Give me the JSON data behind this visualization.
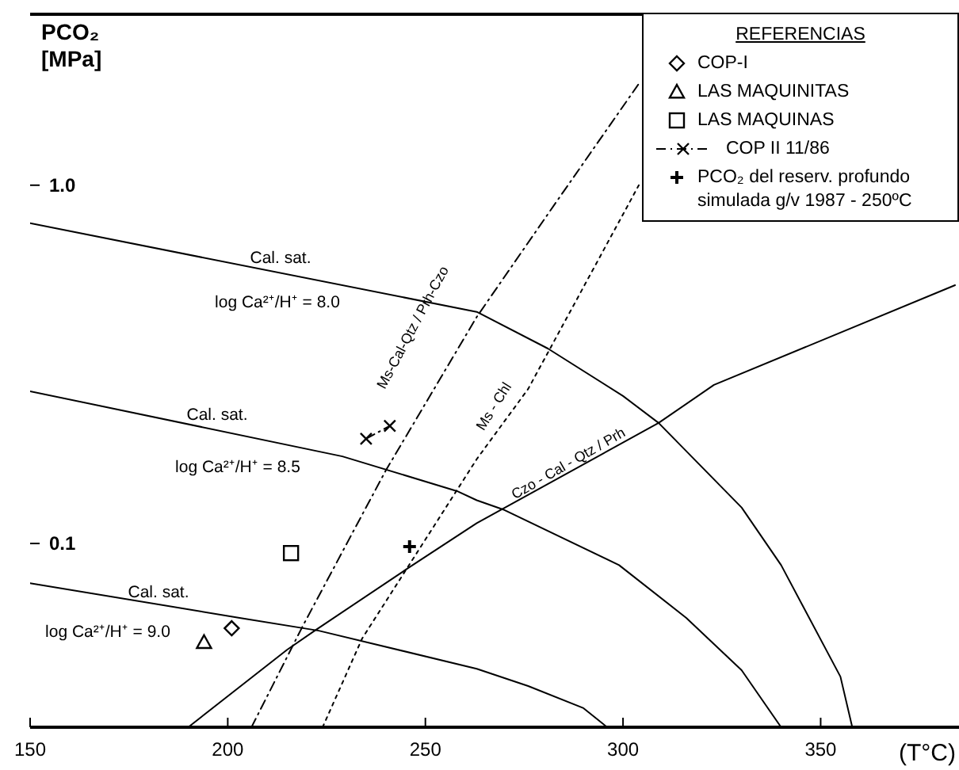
{
  "chart_data": {
    "type": "line",
    "xlabel": "(T°C)",
    "ylabel": "PCO₂ [MPa]",
    "legend_title": "REFERENCIAS",
    "legend": "top right",
    "log": true,
    "xlim": [
      150,
      385
    ],
    "xticks": [
      150,
      200,
      250,
      300,
      350
    ],
    "ylim": [
      0.0307,
      3.0
    ],
    "yticks": [
      {
        "value": 0.1,
        "label": "0.1"
      },
      {
        "value": 1,
        "label": "1.0"
      }
    ],
    "annotations": [
      "Cal. sat.",
      "log Ca²⁺/H⁺ = 8.0",
      "Cal. sat.",
      "log Ca²⁺/H⁺ = 8.5",
      "Cal. sat.",
      "log Ca²⁺/H⁺ = 9.0",
      "Ms-Cal-Qtz / Prh-Czo",
      "Ms - Chl",
      "Czo - Cal - Qtz / Prh"
    ],
    "series": [
      {
        "color": "#000000",
        "marker": "none",
        "line_style": "solid",
        "x": [
          150,
          263,
          281,
          300,
          309,
          330,
          340,
          355,
          358
        ],
        "values": [
          0.783,
          0.443,
          0.35,
          0.258,
          0.217,
          0.126,
          0.087,
          0.0425,
          0.0307
        ]
      },
      {
        "color": "#000000",
        "marker": "none",
        "line_style": "solid",
        "x": [
          150,
          229,
          258,
          263,
          270,
          299,
          316,
          330,
          340
        ],
        "values": [
          0.266,
          0.175,
          0.14,
          0.132,
          0.124,
          0.087,
          0.062,
          0.0443,
          0.0307
        ]
      },
      {
        "color": "#000000",
        "marker": "none",
        "line_style": "solid",
        "x": [
          150,
          203,
          223,
          263,
          276,
          290,
          296
        ],
        "values": [
          0.0775,
          0.062,
          0.0571,
          0.0447,
          0.04,
          0.0347,
          0.0307
        ]
      },
      {
        "color": "#000000",
        "marker": "none",
        "line_style": "dashed",
        "x": [
          206,
          219,
          240,
          263,
          283,
          304
        ],
        "values": [
          0.0307,
          0.0589,
          0.16,
          0.429,
          0.894,
          1.92
        ]
      },
      {
        "color": "#000000",
        "marker": "none",
        "line_style": "dotted",
        "x": [
          224,
          234,
          263,
          276,
          304
        ],
        "values": [
          0.0307,
          0.0543,
          0.172,
          0.27,
          1.0
        ]
      },
      {
        "color": "#000000",
        "marker": "none",
        "line_style": "solid",
        "x": [
          190,
          215,
          222,
          246,
          263,
          309,
          323,
          384
        ],
        "values": [
          0.0307,
          0.0505,
          0.0571,
          0.0859,
          0.114,
          0.217,
          0.277,
          0.526
        ]
      },
      {
        "name": "COP-I",
        "type": "scatter",
        "color": "#000000",
        "marker": "diamond",
        "x": [
          201
        ],
        "values": [
          0.058
        ]
      },
      {
        "name": "LAS MAQUINITAS",
        "type": "scatter",
        "color": "#000000",
        "marker": "triangle",
        "x": [
          194
        ],
        "values": [
          0.053
        ]
      },
      {
        "name": "LAS MAQUINAS",
        "type": "scatter",
        "color": "#000000",
        "marker": "square",
        "x": [
          216
        ],
        "values": [
          0.094
        ]
      },
      {
        "name": "COP II 11/86",
        "type": "line",
        "color": "#000000",
        "marker": "cross",
        "line_style": "dashed",
        "x": [
          235,
          241
        ],
        "values": [
          0.196,
          0.213
        ]
      },
      {
        "name": "PCO₂ del reserv. profundo simulada g/v 1987 - 250ºC",
        "type": "scatter",
        "color": "#000000",
        "marker": "cross",
        "x": [
          246
        ],
        "values": [
          0.098
        ]
      }
    ]
  }
}
